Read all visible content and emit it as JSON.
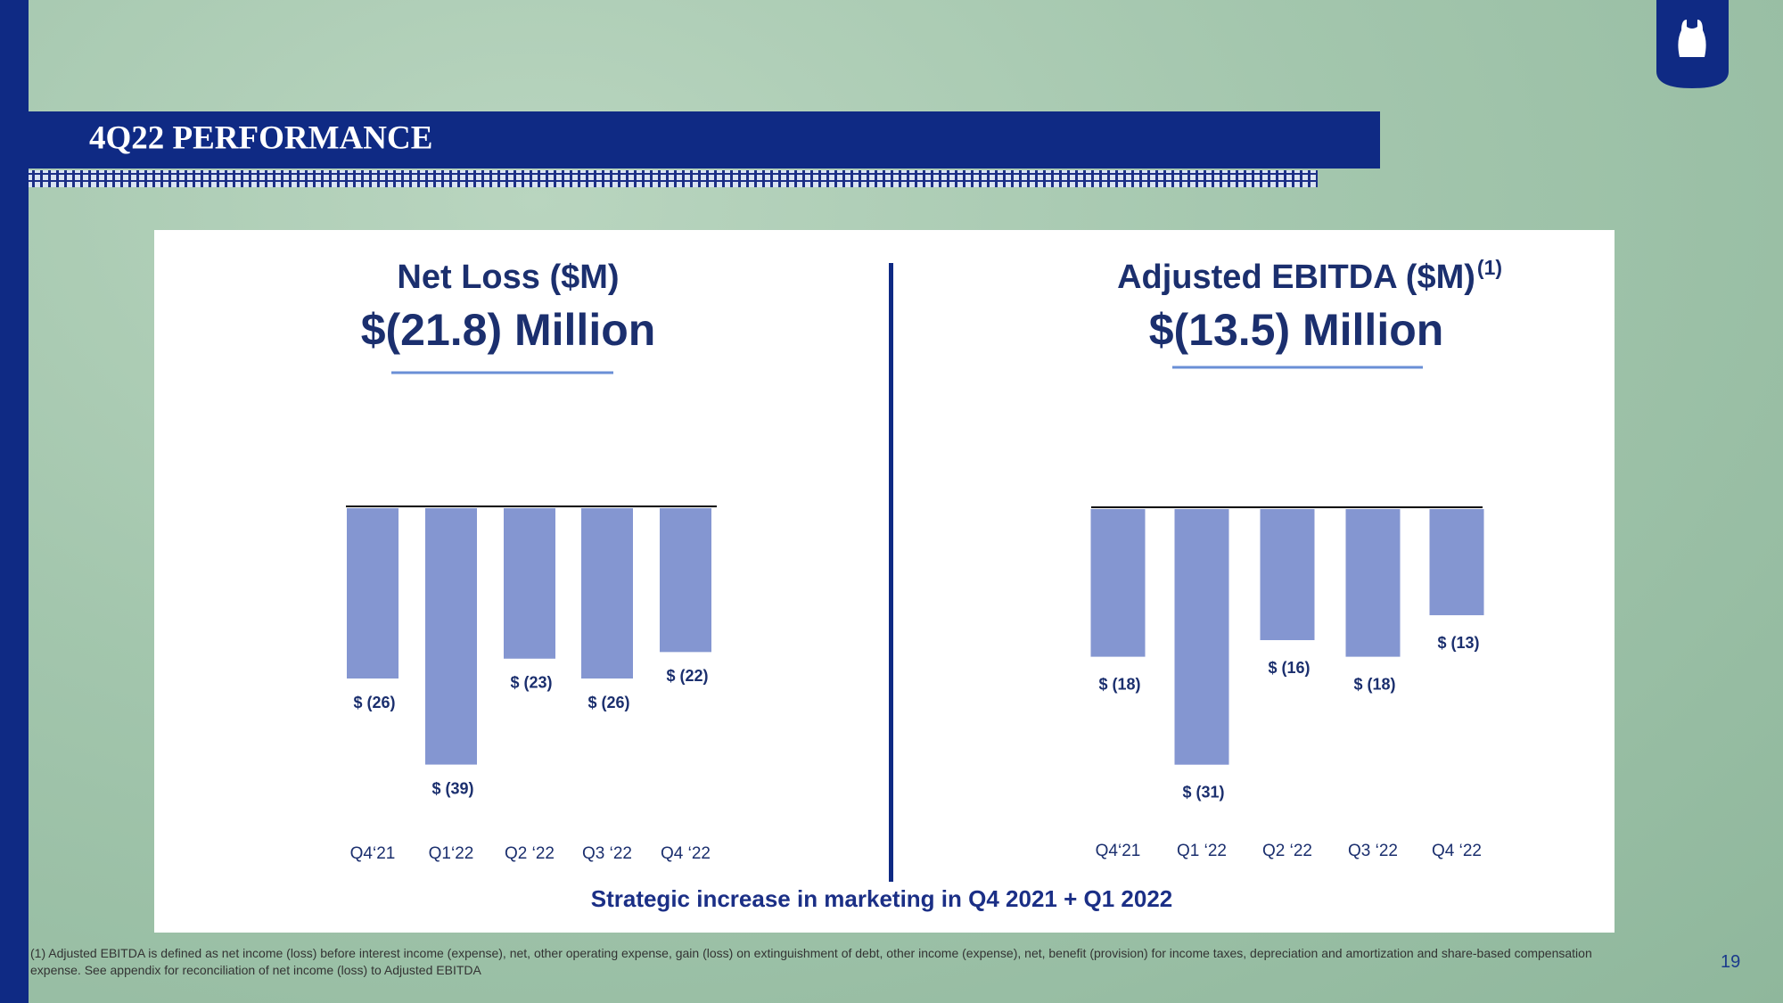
{
  "title": "4Q22 PERFORMANCE",
  "caption": "Strategic increase in marketing in Q4 2021 + Q1 2022",
  "footnote": "(1) Adjusted EBITDA is defined as net income (loss) before interest income (expense), net, other operating expense, gain (loss) on extinguishment of debt, other income (expense), net, benefit (provision) for income taxes, depreciation and amortization and share-based compensation expense. See appendix for reconciliation of net income (loss) to Adjusted EBITDA",
  "page_number": "19",
  "chart_data": [
    {
      "type": "bar",
      "title": "Net Loss ($M)",
      "subtitle": "$(21.8) Million",
      "categories": [
        "Q4‘21",
        "Q1‘22",
        "Q2 ‘22",
        "Q3 ‘22",
        "Q4 ‘22"
      ],
      "values": [
        -26,
        -39,
        -23,
        -26,
        -22
      ],
      "value_labels": [
        "$ (26)",
        "$ (39)",
        "$ (23)",
        "$ (26)",
        "$ (22)"
      ],
      "color": "#8496d1",
      "ylim": [
        -40,
        0
      ]
    },
    {
      "type": "bar",
      "title": "Adjusted EBITDA ($M)",
      "title_note": "(1)",
      "subtitle": "$(13.5) Million",
      "categories": [
        "Q4‘21",
        "Q1 ‘22",
        "Q2 ‘22",
        "Q3 ‘22",
        "Q4 ‘22"
      ],
      "values": [
        -18,
        -31,
        -16,
        -18,
        -13
      ],
      "value_labels": [
        "$ (18)",
        "$ (31)",
        "$ (16)",
        "$ (18)",
        "$ (13)"
      ],
      "color": "#8496d1",
      "ylim": [
        -32,
        0
      ]
    }
  ]
}
